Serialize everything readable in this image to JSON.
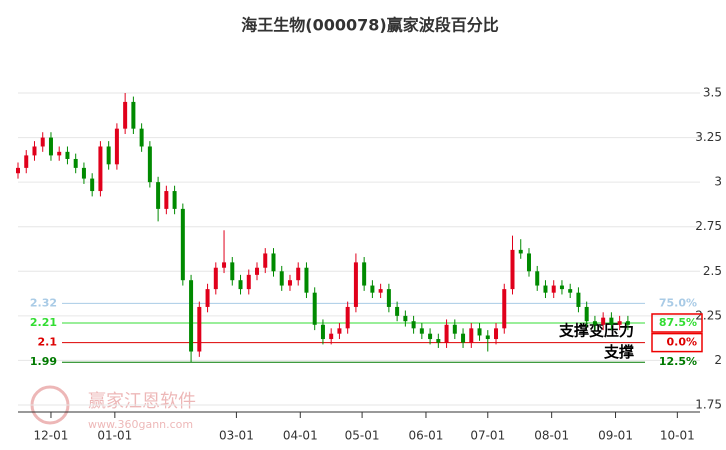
{
  "chart_data": {
    "type": "candlestick",
    "title": "海王生物(000078)赢家波段百分比",
    "watermark": "赢家江恩软件",
    "watermark_url": "www.360gann.com",
    "up_color": "#e0001b",
    "down_color": "#008a00",
    "grid": true,
    "ylim": [
      1.75,
      3.85
    ],
    "yticks": [
      1.75,
      2,
      2.25,
      2.5,
      2.75,
      3,
      3.25,
      3.5
    ],
    "xlim": [
      0,
      331
    ],
    "xticks": [
      {
        "value": 16,
        "label": "12-01"
      },
      {
        "value": 47,
        "label": "01-01"
      },
      {
        "value": 106,
        "label": "03-01"
      },
      {
        "value": 137,
        "label": "04-01"
      },
      {
        "value": 167,
        "label": "05-01"
      },
      {
        "value": 198,
        "label": "06-01"
      },
      {
        "value": 228,
        "label": "07-01"
      },
      {
        "value": 259,
        "label": "08-01"
      },
      {
        "value": 290,
        "label": "09-01"
      },
      {
        "value": 320,
        "label": "10-01"
      }
    ],
    "x": [
      0,
      4,
      8,
      12,
      16,
      20,
      24,
      28,
      32,
      36,
      40,
      44,
      48,
      52,
      56,
      60,
      64,
      68,
      72,
      76,
      80,
      84,
      88,
      92,
      96,
      100,
      104,
      108,
      112,
      116,
      120,
      124,
      128,
      132,
      136,
      140,
      144,
      148,
      152,
      156,
      160,
      164,
      168,
      172,
      176,
      180,
      184,
      188,
      192,
      196,
      200,
      204,
      208,
      212,
      216,
      220,
      224,
      228,
      232,
      236,
      240,
      244,
      248,
      252,
      256,
      260,
      264,
      268,
      272,
      276,
      280,
      284,
      288,
      292,
      296
    ],
    "open": [
      3.05,
      3.08,
      3.15,
      3.2,
      3.25,
      3.15,
      3.17,
      3.13,
      3.08,
      3.02,
      2.95,
      3.2,
      3.1,
      3.3,
      3.45,
      3.3,
      3.2,
      3.0,
      2.85,
      2.95,
      2.85,
      2.45,
      2.05,
      2.3,
      2.4,
      2.52,
      2.55,
      2.45,
      2.4,
      2.48,
      2.52,
      2.6,
      2.5,
      2.42,
      2.45,
      2.52,
      2.38,
      2.2,
      2.12,
      2.15,
      2.18,
      2.3,
      2.55,
      2.42,
      2.38,
      2.4,
      2.3,
      2.25,
      2.22,
      2.18,
      2.15,
      2.12,
      2.1,
      2.2,
      2.15,
      2.1,
      2.18,
      2.14,
      2.12,
      2.18,
      2.4,
      2.62,
      2.6,
      2.5,
      2.42,
      2.38,
      2.42,
      2.4,
      2.38,
      2.3,
      2.22,
      2.2,
      2.24,
      2.2,
      2.22
    ],
    "close": [
      3.08,
      3.15,
      3.2,
      3.25,
      3.15,
      3.17,
      3.13,
      3.08,
      3.02,
      2.95,
      3.2,
      3.1,
      3.3,
      3.45,
      3.3,
      3.2,
      3.0,
      2.85,
      2.95,
      2.85,
      2.45,
      2.05,
      2.3,
      2.4,
      2.52,
      2.55,
      2.45,
      2.4,
      2.48,
      2.52,
      2.6,
      2.5,
      2.42,
      2.45,
      2.52,
      2.38,
      2.2,
      2.12,
      2.15,
      2.18,
      2.3,
      2.55,
      2.42,
      2.38,
      2.4,
      2.3,
      2.25,
      2.22,
      2.18,
      2.15,
      2.12,
      2.1,
      2.2,
      2.15,
      2.1,
      2.18,
      2.14,
      2.12,
      2.18,
      2.4,
      2.62,
      2.6,
      2.5,
      2.42,
      2.38,
      2.42,
      2.4,
      2.38,
      2.3,
      2.22,
      2.2,
      2.24,
      2.2,
      2.22,
      2.2
    ],
    "high": [
      3.11,
      3.18,
      3.23,
      3.28,
      3.28,
      3.2,
      3.2,
      3.16,
      3.11,
      3.05,
      3.23,
      3.23,
      3.33,
      3.5,
      3.48,
      3.33,
      3.23,
      3.03,
      2.98,
      2.98,
      2.88,
      2.48,
      2.33,
      2.43,
      2.55,
      2.73,
      2.58,
      2.48,
      2.51,
      2.55,
      2.63,
      2.63,
      2.53,
      2.48,
      2.55,
      2.55,
      2.41,
      2.23,
      2.18,
      2.21,
      2.33,
      2.6,
      2.58,
      2.45,
      2.43,
      2.43,
      2.33,
      2.28,
      2.25,
      2.21,
      2.18,
      2.15,
      2.23,
      2.23,
      2.18,
      2.21,
      2.21,
      2.17,
      2.21,
      2.43,
      2.7,
      2.68,
      2.63,
      2.53,
      2.45,
      2.45,
      2.45,
      2.43,
      2.41,
      2.33,
      2.25,
      2.27,
      2.27,
      2.25,
      2.25
    ],
    "low": [
      3.02,
      3.05,
      3.12,
      3.17,
      3.12,
      3.12,
      3.1,
      3.05,
      2.99,
      2.92,
      2.92,
      3.07,
      3.07,
      3.27,
      3.27,
      3.17,
      2.97,
      2.78,
      2.82,
      2.82,
      2.42,
      1.99,
      2.02,
      2.27,
      2.37,
      2.49,
      2.42,
      2.37,
      2.37,
      2.45,
      2.49,
      2.47,
      2.39,
      2.39,
      2.42,
      2.35,
      2.17,
      2.09,
      2.09,
      2.12,
      2.15,
      2.27,
      2.39,
      2.35,
      2.35,
      2.27,
      2.22,
      2.19,
      2.15,
      2.12,
      2.09,
      2.07,
      2.07,
      2.12,
      2.07,
      2.07,
      2.11,
      2.05,
      2.09,
      2.15,
      2.37,
      2.57,
      2.47,
      2.39,
      2.35,
      2.35,
      2.37,
      2.35,
      2.27,
      2.19,
      2.17,
      2.17,
      2.17,
      2.17,
      2.17
    ],
    "levels": [
      {
        "price": 2.32,
        "percent": {
          "value": 75,
          "label": "75.0%"
        },
        "color": "#a9cbe6"
      },
      {
        "price": 2.21,
        "percent": {
          "value": 87.5,
          "label": "87.5%"
        },
        "color": "#33dd33",
        "note": "支撑变压力"
      },
      {
        "price": 2.1,
        "percent": {
          "value": 0,
          "label": "0.0%"
        },
        "color": "#dd0000",
        "note": "支撑"
      },
      {
        "price": 1.99,
        "percent": {
          "value": 12.5,
          "label": "12.5%"
        },
        "color": "#007a00"
      }
    ]
  }
}
